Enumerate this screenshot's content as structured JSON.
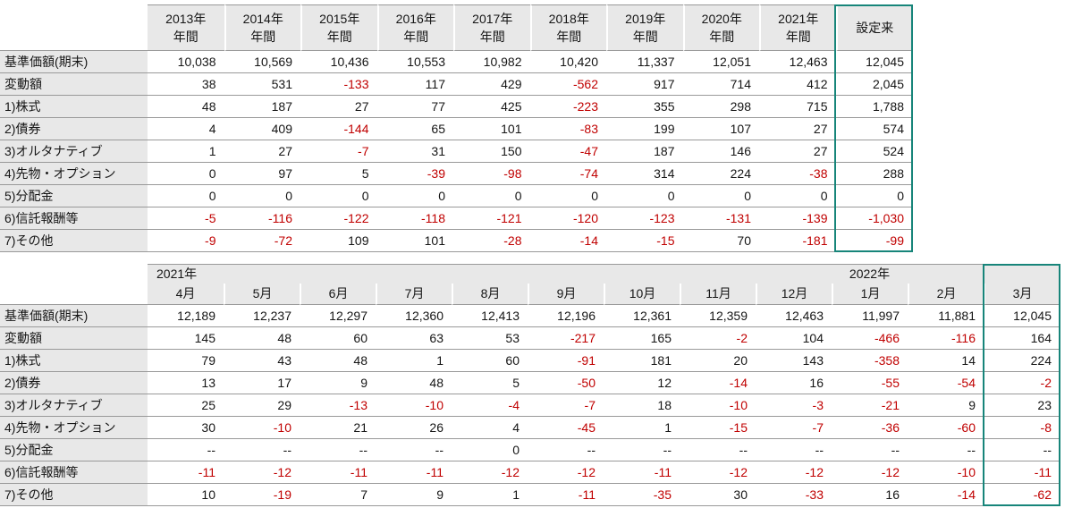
{
  "theme": {
    "header_bg": "#e8e8e8",
    "grid_line": "#999999",
    "negative_color": "#c00000",
    "highlight_border": "#17857a"
  },
  "annual_table": {
    "columns": [
      {
        "top": "2013年",
        "bottom": "年間"
      },
      {
        "top": "2014年",
        "bottom": "年間"
      },
      {
        "top": "2015年",
        "bottom": "年間"
      },
      {
        "top": "2016年",
        "bottom": "年間"
      },
      {
        "top": "2017年",
        "bottom": "年間"
      },
      {
        "top": "2018年",
        "bottom": "年間"
      },
      {
        "top": "2019年",
        "bottom": "年間"
      },
      {
        "top": "2020年",
        "bottom": "年間"
      },
      {
        "top": "2021年",
        "bottom": "年間"
      },
      {
        "top": "設定来",
        "bottom": ""
      }
    ],
    "rows": [
      {
        "label": "基準価額(期末)",
        "values": [
          "10,038",
          "10,569",
          "10,436",
          "10,553",
          "10,982",
          "10,420",
          "11,337",
          "12,051",
          "12,463",
          "12,045"
        ]
      },
      {
        "label": "変動額",
        "values": [
          "38",
          "531",
          "-133",
          "117",
          "429",
          "-562",
          "917",
          "714",
          "412",
          "2,045"
        ]
      },
      {
        "label": "1)株式",
        "values": [
          "48",
          "187",
          "27",
          "77",
          "425",
          "-223",
          "355",
          "298",
          "715",
          "1,788"
        ]
      },
      {
        "label": "2)債券",
        "values": [
          "4",
          "409",
          "-144",
          "65",
          "101",
          "-83",
          "199",
          "107",
          "27",
          "574"
        ]
      },
      {
        "label": "3)オルタナティブ",
        "values": [
          "1",
          "27",
          "-7",
          "31",
          "150",
          "-47",
          "187",
          "146",
          "27",
          "524"
        ]
      },
      {
        "label": "4)先物・オプション",
        "values": [
          "0",
          "97",
          "5",
          "-39",
          "-98",
          "-74",
          "314",
          "224",
          "-38",
          "288"
        ]
      },
      {
        "label": "5)分配金",
        "values": [
          "0",
          "0",
          "0",
          "0",
          "0",
          "0",
          "0",
          "0",
          "0",
          "0"
        ]
      },
      {
        "label": "6)信託報酬等",
        "values": [
          "-5",
          "-116",
          "-122",
          "-118",
          "-121",
          "-120",
          "-123",
          "-131",
          "-139",
          "-1,030"
        ]
      },
      {
        "label": "7)その他",
        "values": [
          "-9",
          "-72",
          "109",
          "101",
          "-28",
          "-14",
          "-15",
          "70",
          "-181",
          "-99"
        ]
      }
    ]
  },
  "monthly_table": {
    "year_left": "2021年",
    "year_right": "2022年",
    "months": [
      "4月",
      "5月",
      "6月",
      "7月",
      "8月",
      "9月",
      "10月",
      "11月",
      "12月",
      "1月",
      "2月",
      "3月"
    ],
    "rows": [
      {
        "label": "基準価額(期末)",
        "values": [
          "12,189",
          "12,237",
          "12,297",
          "12,360",
          "12,413",
          "12,196",
          "12,361",
          "12,359",
          "12,463",
          "11,997",
          "11,881",
          "12,045"
        ]
      },
      {
        "label": "変動額",
        "values": [
          "145",
          "48",
          "60",
          "63",
          "53",
          "-217",
          "165",
          "-2",
          "104",
          "-466",
          "-116",
          "164"
        ]
      },
      {
        "label": "1)株式",
        "values": [
          "79",
          "43",
          "48",
          "1",
          "60",
          "-91",
          "181",
          "20",
          "143",
          "-358",
          "14",
          "224"
        ]
      },
      {
        "label": "2)債券",
        "values": [
          "13",
          "17",
          "9",
          "48",
          "5",
          "-50",
          "12",
          "-14",
          "16",
          "-55",
          "-54",
          "-2"
        ]
      },
      {
        "label": "3)オルタナティブ",
        "values": [
          "25",
          "29",
          "-13",
          "-10",
          "-4",
          "-7",
          "18",
          "-10",
          "-3",
          "-21",
          "9",
          "23"
        ]
      },
      {
        "label": "4)先物・オプション",
        "values": [
          "30",
          "-10",
          "21",
          "26",
          "4",
          "-45",
          "1",
          "-15",
          "-7",
          "-36",
          "-60",
          "-8"
        ]
      },
      {
        "label": "5)分配金",
        "values": [
          "--",
          "--",
          "--",
          "--",
          "0",
          "--",
          "--",
          "--",
          "--",
          "--",
          "--",
          "--"
        ]
      },
      {
        "label": "6)信託報酬等",
        "values": [
          "-11",
          "-12",
          "-11",
          "-11",
          "-12",
          "-12",
          "-11",
          "-12",
          "-12",
          "-12",
          "-10",
          "-11"
        ]
      },
      {
        "label": "7)その他",
        "values": [
          "10",
          "-19",
          "7",
          "9",
          "1",
          "-11",
          "-35",
          "30",
          "-33",
          "16",
          "-14",
          "-62"
        ]
      }
    ]
  }
}
